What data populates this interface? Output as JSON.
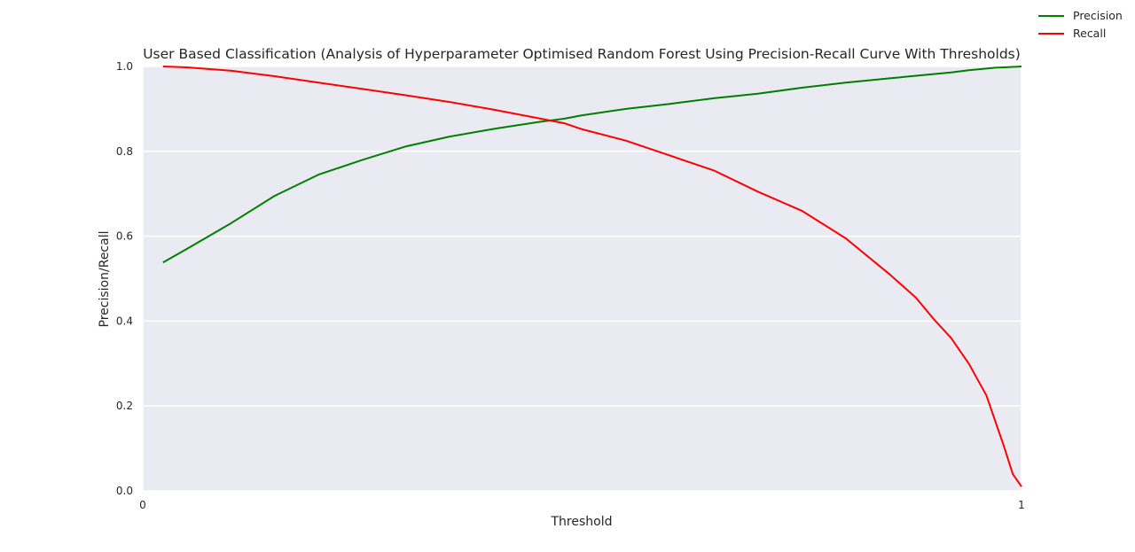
{
  "chart_data": {
    "type": "line",
    "title": "User Based Classification (Analysis of Hyperparameter Optimised Random Forest Using Precision-Recall Curve With Thresholds)",
    "xlabel": "Threshold",
    "ylabel": "Precision/Recall",
    "xlim": [
      0,
      1
    ],
    "ylim": [
      0,
      1
    ],
    "x_ticks": [
      "0",
      "1"
    ],
    "y_ticks": [
      "0.0",
      "0.2",
      "0.4",
      "0.6",
      "0.8",
      "1.0"
    ],
    "grid": true,
    "legend_position": "top-right",
    "x": [
      0.023,
      0.05,
      0.1,
      0.15,
      0.2,
      0.25,
      0.3,
      0.35,
      0.4,
      0.45,
      0.48,
      0.5,
      0.55,
      0.6,
      0.65,
      0.7,
      0.75,
      0.8,
      0.85,
      0.88,
      0.9,
      0.92,
      0.94,
      0.96,
      0.97,
      0.98,
      0.99,
      1.0
    ],
    "series": [
      {
        "name": "Precision",
        "color": "#008000",
        "values": [
          0.538,
          0.57,
          0.63,
          0.695,
          0.745,
          0.78,
          0.812,
          0.835,
          0.853,
          0.869,
          0.877,
          0.885,
          0.9,
          0.912,
          0.925,
          0.936,
          0.95,
          0.962,
          0.972,
          0.978,
          0.982,
          0.986,
          0.991,
          0.995,
          0.997,
          0.998,
          0.999,
          1.0
        ]
      },
      {
        "name": "Recall",
        "color": "#ff0000",
        "values": [
          1.0,
          0.998,
          0.99,
          0.977,
          0.962,
          0.947,
          0.932,
          0.916,
          0.898,
          0.878,
          0.866,
          0.852,
          0.825,
          0.79,
          0.755,
          0.705,
          0.66,
          0.595,
          0.51,
          0.455,
          0.405,
          0.36,
          0.3,
          0.225,
          0.165,
          0.105,
          0.04,
          0.01
        ]
      }
    ]
  }
}
